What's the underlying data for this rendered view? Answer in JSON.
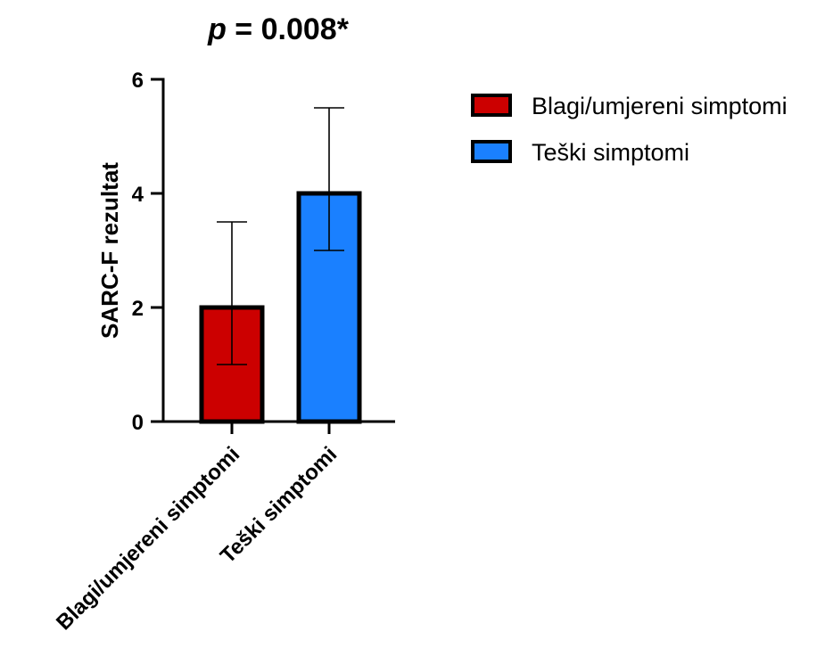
{
  "chart_data": {
    "type": "bar",
    "title_prefix": "p",
    "title_suffix": " = 0.008*",
    "ylabel": "SARC-F rezultat",
    "xlabel": "",
    "ylim": [
      0,
      6
    ],
    "yticks": [
      "0",
      "2",
      "4",
      "6"
    ],
    "categories": [
      "Blagi/umjereni simptomi",
      "Teški simptomi"
    ],
    "series": [
      {
        "values": [
          2,
          4
        ],
        "error_low": [
          1,
          3
        ],
        "error_high": [
          3.5,
          5.5
        ]
      }
    ],
    "bar_colors": [
      "#cc0000",
      "#1a80ff"
    ],
    "legend": {
      "placement": "right",
      "entries": [
        {
          "label": "Blagi/umjereni simptomi",
          "color": "#cc0000"
        },
        {
          "label": "Teški simptomi",
          "color": "#1a80ff"
        }
      ]
    },
    "grid": false
  }
}
